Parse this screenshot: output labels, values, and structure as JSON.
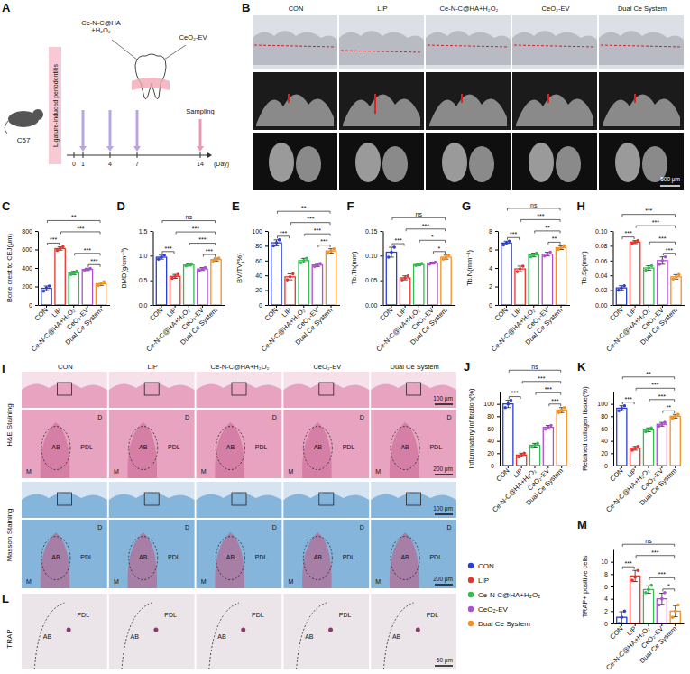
{
  "chart_data": [
    {
      "panel_label": "C",
      "type": "bar",
      "y_label": "Bone crest to CEJ(μm)",
      "categories": [
        "CON",
        "LIP",
        "Ce-N-C@HA+H₂O₂",
        "CeO₂-EV",
        "Dual Ce System"
      ],
      "colors": [
        "#2b3fd6",
        "#e8342c",
        "#2fbf4e",
        "#b04fd6",
        "#f5901f"
      ],
      "values": [
        180,
        610,
        345,
        385,
        230
      ],
      "errors": [
        25,
        18,
        18,
        12,
        18
      ],
      "points": [
        [
          150,
          185,
          205
        ],
        [
          590,
          610,
          630
        ],
        [
          330,
          340,
          365
        ],
        [
          375,
          385,
          395
        ],
        [
          210,
          230,
          250
        ]
      ],
      "ylim": [
        0,
        800
      ],
      "yticks": [
        0,
        200,
        400,
        600,
        800
      ],
      "significance": [
        {
          "pair": [
            "CON",
            "LIP"
          ],
          "label": "***"
        },
        {
          "pair": [
            "CON",
            "Dual Ce System"
          ],
          "label": "**"
        },
        {
          "pair": [
            "LIP",
            "Dual Ce System"
          ],
          "label": "***"
        },
        {
          "pair": [
            "Ce-N-C@HA+H₂O₂",
            "Dual Ce System"
          ],
          "label": "***"
        },
        {
          "pair": [
            "CeO₂-EV",
            "Dual Ce System"
          ],
          "label": "***"
        }
      ]
    },
    {
      "panel_label": "D",
      "type": "bar",
      "y_label": "BMD(g/cm⁻³)",
      "categories": [
        "CON",
        "LIP",
        "Ce-N-C@HA+H₂O₂",
        "CeO₂-EV",
        "Dual Ce System"
      ],
      "colors": [
        "#2b3fd6",
        "#e8342c",
        "#2fbf4e",
        "#b04fd6",
        "#f5901f"
      ],
      "values": [
        0.97,
        0.58,
        0.81,
        0.73,
        0.92
      ],
      "errors": [
        0.04,
        0.04,
        0.02,
        0.03,
        0.03
      ],
      "points": [
        [
          0.93,
          0.97,
          1.01
        ],
        [
          0.54,
          0.58,
          0.62
        ],
        [
          0.79,
          0.81,
          0.83
        ],
        [
          0.7,
          0.73,
          0.76
        ],
        [
          0.89,
          0.92,
          0.95
        ]
      ],
      "ylim": [
        0,
        1.5
      ],
      "yticks": [
        {
          "value": 0,
          "label": "0.0"
        },
        0.5,
        {
          "value": 1,
          "label": "1.0"
        },
        1.5
      ],
      "significance": [
        {
          "pair": [
            "CON",
            "LIP"
          ],
          "label": "***"
        },
        {
          "pair": [
            "CON",
            "Dual Ce System"
          ],
          "label": "ns"
        },
        {
          "pair": [
            "LIP",
            "Dual Ce System"
          ],
          "label": "***"
        },
        {
          "pair": [
            "Ce-N-C@HA+H₂O₂",
            "Dual Ce System"
          ],
          "label": "***"
        },
        {
          "pair": [
            "CeO₂-EV",
            "Dual Ce System"
          ],
          "label": "***"
        }
      ]
    },
    {
      "panel_label": "E",
      "type": "bar",
      "y_label": "BV/TV(%)",
      "categories": [
        "CON",
        "LIP",
        "Ce-N-C@HA+H₂O₂",
        "CeO₂-EV",
        "Dual Ce System"
      ],
      "colors": [
        "#2b3fd6",
        "#e8342c",
        "#2fbf4e",
        "#b04fd6",
        "#f5901f"
      ],
      "values": [
        84,
        38,
        60,
        54,
        73
      ],
      "errors": [
        4,
        4,
        3,
        2,
        3
      ],
      "points": [
        [
          80,
          84,
          88
        ],
        [
          34,
          38,
          42
        ],
        [
          57,
          60,
          63
        ],
        [
          52,
          54,
          56
        ],
        [
          70,
          73,
          76
        ]
      ],
      "ylim": [
        0,
        100
      ],
      "yticks": [
        0,
        20,
        40,
        60,
        80,
        100
      ],
      "significance": [
        {
          "pair": [
            "CON",
            "LIP"
          ],
          "label": "***"
        },
        {
          "pair": [
            "CON",
            "Dual Ce System"
          ],
          "label": "**"
        },
        {
          "pair": [
            "LIP",
            "Dual Ce System"
          ],
          "label": "***"
        },
        {
          "pair": [
            "Ce-N-C@HA+H₂O₂",
            "Dual Ce System"
          ],
          "label": "***"
        },
        {
          "pair": [
            "CeO₂-EV",
            "Dual Ce System"
          ],
          "label": "***"
        }
      ]
    },
    {
      "panel_label": "F",
      "type": "bar",
      "y_label": "Tb.Th(mm)",
      "categories": [
        "CON",
        "LIP",
        "Ce-N-C@HA+H₂O₂",
        "CeO₂-EV",
        "Dual Ce System"
      ],
      "colors": [
        "#2b3fd6",
        "#e8342c",
        "#2fbf4e",
        "#b04fd6",
        "#f5901f"
      ],
      "values": [
        0.107,
        0.055,
        0.082,
        0.085,
        0.097
      ],
      "errors": [
        0.01,
        0.004,
        0.002,
        0.002,
        0.004
      ],
      "points": [
        [
          0.097,
          0.107,
          0.117
        ],
        [
          0.051,
          0.055,
          0.059
        ],
        [
          0.08,
          0.082,
          0.084
        ],
        [
          0.083,
          0.085,
          0.087
        ],
        [
          0.093,
          0.097,
          0.101
        ]
      ],
      "ylim": [
        0,
        0.15
      ],
      "yticks": [
        {
          "value": 0,
          "label": "0.00"
        },
        0.05,
        {
          "value": 0.1,
          "label": "0.10"
        },
        0.15
      ],
      "significance": [
        {
          "pair": [
            "CON",
            "LIP"
          ],
          "label": "***"
        },
        {
          "pair": [
            "CON",
            "Dual Ce System"
          ],
          "label": "ns"
        },
        {
          "pair": [
            "LIP",
            "Dual Ce System"
          ],
          "label": "***"
        },
        {
          "pair": [
            "Ce-N-C@HA+H₂O₂",
            "Dual Ce System"
          ],
          "label": "*"
        },
        {
          "pair": [
            "CeO₂-EV",
            "Dual Ce System"
          ],
          "label": "*"
        }
      ]
    },
    {
      "panel_label": "G",
      "type": "bar",
      "y_label": "Tb.N(mm⁻¹)",
      "categories": [
        "CON",
        "LIP",
        "Ce-N-C@HA+H₂O₂",
        "CeO₂-EV",
        "Dual Ce System"
      ],
      "colors": [
        "#2b3fd6",
        "#e8342c",
        "#2fbf4e",
        "#b04fd6",
        "#f5901f"
      ],
      "values": [
        6.7,
        3.9,
        5.4,
        5.5,
        6.2
      ],
      "errors": [
        0.2,
        0.3,
        0.2,
        0.2,
        0.2
      ],
      "points": [
        [
          6.5,
          6.7,
          6.9
        ],
        [
          3.6,
          3.9,
          4.2
        ],
        [
          5.2,
          5.4,
          5.6
        ],
        [
          5.3,
          5.5,
          5.7
        ],
        [
          6.0,
          6.2,
          6.4
        ]
      ],
      "ylim": [
        0,
        8
      ],
      "yticks": [
        0,
        2,
        4,
        6,
        8
      ],
      "significance": [
        {
          "pair": [
            "CON",
            "LIP"
          ],
          "label": "***"
        },
        {
          "pair": [
            "CON",
            "Dual Ce System"
          ],
          "label": "ns"
        },
        {
          "pair": [
            "LIP",
            "Dual Ce System"
          ],
          "label": "***"
        },
        {
          "pair": [
            "Ce-N-C@HA+H₂O₂",
            "Dual Ce System"
          ],
          "label": "**"
        },
        {
          "pair": [
            "CeO₂-EV",
            "Dual Ce System"
          ],
          "label": "**"
        }
      ]
    },
    {
      "panel_label": "H",
      "type": "bar",
      "y_label": "Tb.Sp(mm)",
      "categories": [
        "CON",
        "LIP",
        "Ce-N-C@HA+H₂O₂",
        "CeO₂-EV",
        "Dual Ce System"
      ],
      "colors": [
        "#2b3fd6",
        "#e8342c",
        "#2fbf4e",
        "#b04fd6",
        "#f5901f"
      ],
      "values": [
        0.023,
        0.085,
        0.05,
        0.06,
        0.038
      ],
      "errors": [
        0.003,
        0.002,
        0.003,
        0.005,
        0.003
      ],
      "points": [
        [
          0.02,
          0.023,
          0.026
        ],
        [
          0.083,
          0.085,
          0.087
        ],
        [
          0.047,
          0.05,
          0.053
        ],
        [
          0.055,
          0.06,
          0.065
        ],
        [
          0.035,
          0.038,
          0.041
        ]
      ],
      "ylim": [
        0,
        0.1
      ],
      "yticks": [
        {
          "value": 0,
          "label": "0.00"
        },
        0.02,
        0.04,
        0.06,
        0.08,
        {
          "value": 0.1,
          "label": "0.10"
        }
      ],
      "significance": [
        {
          "pair": [
            "CON",
            "LIP"
          ],
          "label": "***"
        },
        {
          "pair": [
            "CON",
            "Dual Ce System"
          ],
          "label": "***"
        },
        {
          "pair": [
            "LIP",
            "Dual Ce System"
          ],
          "label": "***"
        },
        {
          "pair": [
            "Ce-N-C@HA+H₂O₂",
            "Dual Ce System"
          ],
          "label": "***"
        },
        {
          "pair": [
            "CeO₂-EV",
            "Dual Ce System"
          ],
          "label": "***"
        }
      ]
    },
    {
      "panel_label": "J",
      "type": "bar",
      "y_label": "Inflammatory infiltration(%)",
      "categories": [
        "CON",
        "LIP",
        "Ce-N-C@HA+H₂O₂",
        "CeO₂-EV",
        "Dual Ce System"
      ],
      "colors": [
        "#2b3fd6",
        "#e8342c",
        "#2fbf4e",
        "#b04fd6",
        "#f5901f"
      ],
      "values": [
        100,
        17,
        33,
        62,
        90
      ],
      "errors": [
        6,
        3,
        3,
        3,
        4
      ],
      "points": [
        [
          94,
          100,
          106
        ],
        [
          14,
          17,
          20
        ],
        [
          30,
          33,
          36
        ],
        [
          59,
          62,
          65
        ],
        [
          86,
          90,
          94
        ]
      ],
      "ylim": [
        0,
        120
      ],
      "yticks": [
        0,
        20,
        40,
        60,
        80,
        100
      ],
      "significance": [
        {
          "pair": [
            "CON",
            "LIP"
          ],
          "label": "***"
        },
        {
          "pair": [
            "CON",
            "Dual Ce System"
          ],
          "label": "ns"
        },
        {
          "pair": [
            "LIP",
            "Dual Ce System"
          ],
          "label": "***"
        },
        {
          "pair": [
            "Ce-N-C@HA+H₂O₂",
            "Dual Ce System"
          ],
          "label": "***"
        },
        {
          "pair": [
            "CeO₂-EV",
            "Dual Ce System"
          ],
          "label": "***"
        }
      ]
    },
    {
      "panel_label": "K",
      "type": "bar",
      "y_label": "Retained collagen tissue(%)",
      "categories": [
        "CON",
        "LIP",
        "Ce-N-C@HA+H₂O₂",
        "CeO₂-EV",
        "Dual Ce System"
      ],
      "colors": [
        "#2b3fd6",
        "#e8342c",
        "#2fbf4e",
        "#b04fd6",
        "#f5901f"
      ],
      "values": [
        93,
        28,
        58,
        67,
        80
      ],
      "errors": [
        4,
        3,
        3,
        3,
        3
      ],
      "points": [
        [
          89,
          93,
          97
        ],
        [
          25,
          28,
          31
        ],
        [
          55,
          58,
          61
        ],
        [
          64,
          67,
          70
        ],
        [
          77,
          80,
          83
        ]
      ],
      "ylim": [
        0,
        120
      ],
      "yticks": [
        0,
        20,
        40,
        60,
        80,
        100
      ],
      "significance": [
        {
          "pair": [
            "CON",
            "LIP"
          ],
          "label": "***"
        },
        {
          "pair": [
            "CON",
            "Dual Ce System"
          ],
          "label": "**"
        },
        {
          "pair": [
            "LIP",
            "Dual Ce System"
          ],
          "label": "***"
        },
        {
          "pair": [
            "Ce-N-C@HA+H₂O₂",
            "Dual Ce System"
          ],
          "label": "***"
        },
        {
          "pair": [
            "CeO₂-EV",
            "Dual Ce System"
          ],
          "label": "**"
        }
      ]
    },
    {
      "panel_label": "M",
      "type": "bar",
      "y_label": "TRAP+ positive cells",
      "categories": [
        "CON",
        "LIP",
        "Ce-N-C@HA+H₂O₂",
        "CeO₂-EV",
        "Dual Ce System"
      ],
      "colors": [
        "#2b3fd6",
        "#e8342c",
        "#2fbf4e",
        "#b04fd6",
        "#f5901f"
      ],
      "values": [
        1,
        7.7,
        5.5,
        4,
        2
      ],
      "errors": [
        0.9,
        0.9,
        0.6,
        0.9,
        0.9
      ],
      "points": [
        [
          0,
          1,
          2
        ],
        [
          7,
          7.5,
          8.6
        ],
        [
          5,
          5.5,
          6.2
        ],
        [
          3,
          4,
          5
        ],
        [
          1,
          2,
          3
        ]
      ],
      "ylim": [
        0,
        12
      ],
      "yticks": [
        0,
        2,
        4,
        6,
        8,
        10
      ],
      "legend": "left",
      "significance": [
        {
          "pair": [
            "CON",
            "LIP"
          ],
          "label": "***"
        },
        {
          "pair": [
            "CON",
            "Dual Ce System"
          ],
          "label": "ns"
        },
        {
          "pair": [
            "LIP",
            "Dual Ce System"
          ],
          "label": "***"
        },
        {
          "pair": [
            "Ce-N-C@HA+H₂O₂",
            "Dual Ce System"
          ],
          "label": "***"
        },
        {
          "pair": [
            "CeO₂-EV",
            "Dual Ce System"
          ],
          "label": "*"
        }
      ]
    }
  ],
  "figure": {
    "A": {
      "panel_label": "A",
      "strain": "C57",
      "model": "Ligature-induced periodontitis",
      "treatments": [
        "Ce-N-C@HA+H₂O₂",
        "CeO₂-EV"
      ],
      "days": [
        0,
        1,
        4,
        7,
        14
      ],
      "injection_days": [
        1,
        4,
        7
      ],
      "sampling_day": 14,
      "sampling": "Sampling",
      "axis_label": "(Day)"
    },
    "B": {
      "panel_label": "B",
      "groups": [
        "CON",
        "LIP",
        "Ce-N-C@HA+H₂O₂",
        "CeO₂-EV",
        "Dual Ce System"
      ],
      "scale_bar": "500 μm"
    },
    "I": {
      "panel_label": "I",
      "groups": [
        "CON",
        "LIP",
        "Ce-N-C@HA+H₂O₂",
        "CeO₂-EV",
        "Dual Ce System"
      ],
      "rows": [
        "H&E Staining",
        "Masson Staining"
      ],
      "scale_bars": [
        "100 μm",
        "200 μm"
      ],
      "regions": [
        "M",
        "D",
        "AB",
        "PDL"
      ]
    },
    "L": {
      "panel_label": "L",
      "row": "TRAP",
      "scale_bar": "50 μm",
      "regions": [
        "AB",
        "PDL"
      ]
    }
  }
}
